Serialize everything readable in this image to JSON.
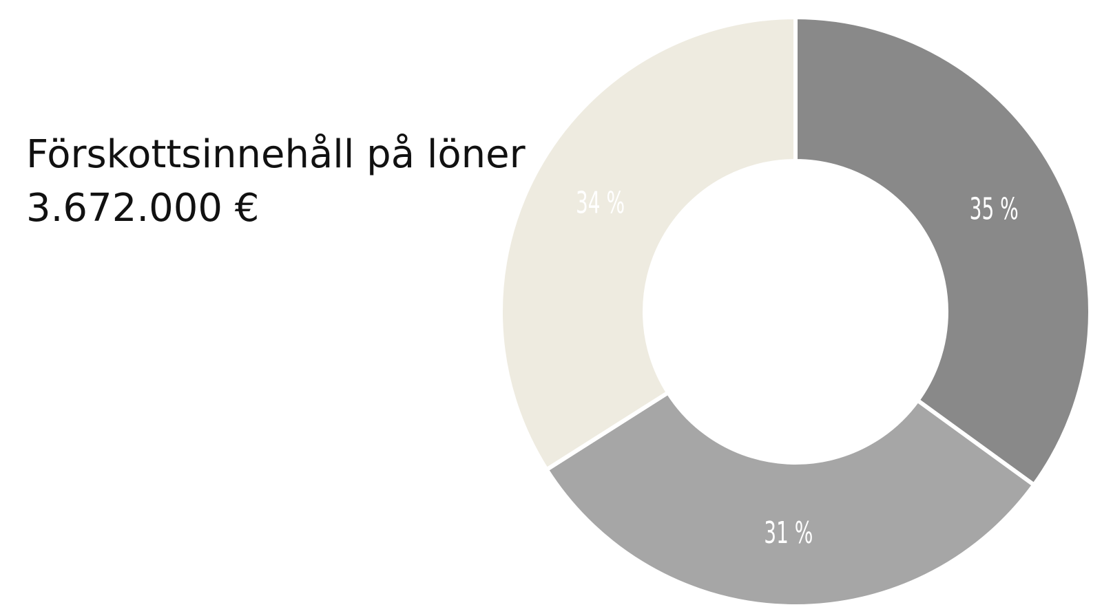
{
  "chart_data": {
    "type": "donut",
    "title": "Förskottsinnehåll på löner",
    "subtitle": "3.672.000 €",
    "values": [
      35,
      31,
      34
    ],
    "value_labels": [
      "35 %",
      "31 %",
      "34 %"
    ],
    "colors": [
      "#898989",
      "#a6a6a6",
      "#eeebe0"
    ]
  }
}
